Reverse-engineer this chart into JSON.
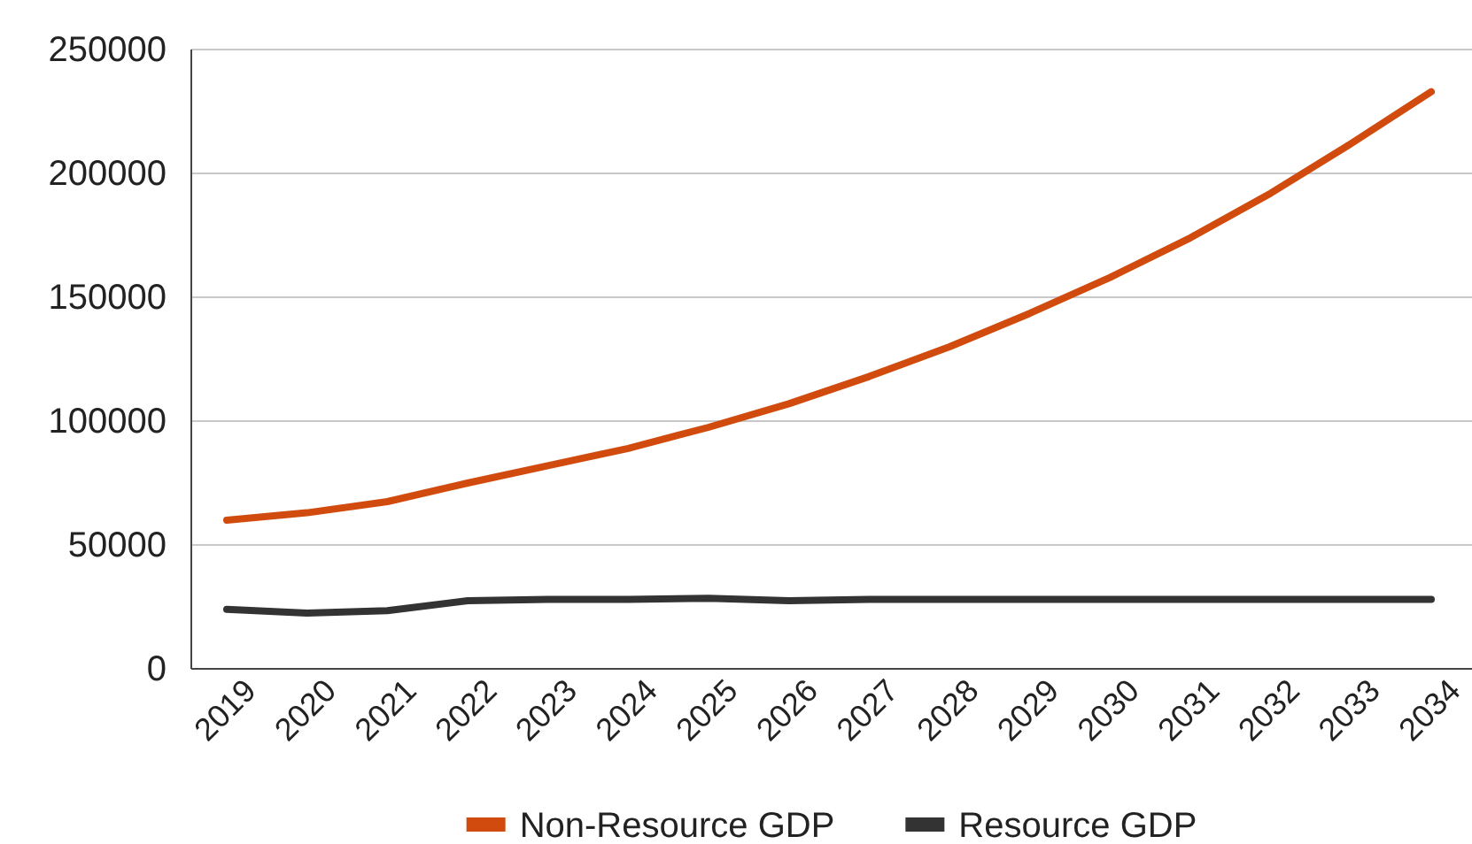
{
  "chart_data": {
    "type": "line",
    "categories": [
      "2019",
      "2020",
      "2021",
      "2022",
      "2023",
      "2024",
      "2025",
      "2026",
      "2027",
      "2028",
      "2029",
      "2030",
      "2031",
      "2032",
      "2033",
      "2034"
    ],
    "series": [
      {
        "name": "Non-Resource GDP",
        "color": "#d14b0e",
        "values": [
          60000,
          63000,
          67500,
          75000,
          82000,
          89000,
          97500,
          107000,
          118000,
          130000,
          143500,
          158000,
          174000,
          192000,
          212000,
          233000
        ]
      },
      {
        "name": "Resource GDP",
        "color": "#333333",
        "values": [
          24000,
          22500,
          23500,
          27500,
          28000,
          28000,
          28500,
          27500,
          28000,
          28000,
          28000,
          28000,
          28000,
          28000,
          28000,
          28000
        ]
      }
    ],
    "ylim": [
      0,
      250000
    ],
    "yticks": [
      0,
      50000,
      100000,
      150000,
      200000,
      250000
    ],
    "grid": "y",
    "legend": "bottom",
    "marker": "none",
    "line_style": "solid"
  }
}
